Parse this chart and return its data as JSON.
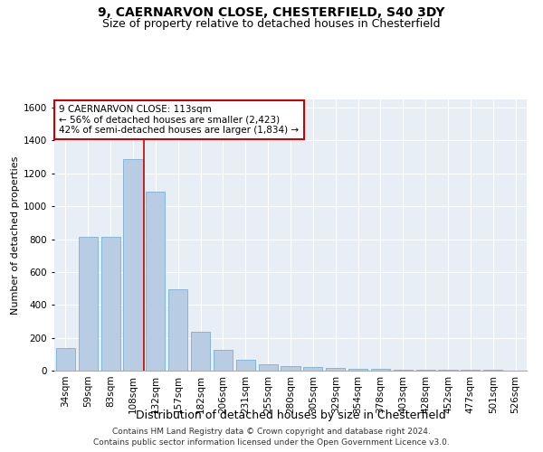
{
  "title1": "9, CAERNARVON CLOSE, CHESTERFIELD, S40 3DY",
  "title2": "Size of property relative to detached houses in Chesterfield",
  "xlabel": "Distribution of detached houses by size in Chesterfield",
  "ylabel": "Number of detached properties",
  "categories": [
    "34sqm",
    "59sqm",
    "83sqm",
    "108sqm",
    "132sqm",
    "157sqm",
    "182sqm",
    "206sqm",
    "231sqm",
    "255sqm",
    "280sqm",
    "305sqm",
    "329sqm",
    "354sqm",
    "378sqm",
    "403sqm",
    "428sqm",
    "452sqm",
    "477sqm",
    "501sqm",
    "526sqm"
  ],
  "values": [
    135,
    812,
    815,
    1285,
    1090,
    495,
    235,
    125,
    65,
    40,
    28,
    20,
    15,
    12,
    10,
    8,
    7,
    5,
    4,
    3,
    2
  ],
  "bar_color": "#b8cce4",
  "bar_edge_color": "#7bafd4",
  "vline_color": "#cc0000",
  "annotation_text": "9 CAERNARVON CLOSE: 113sqm\n← 56% of detached houses are smaller (2,423)\n42% of semi-detached houses are larger (1,834) →",
  "annotation_box_color": "#cc0000",
  "ylim": [
    0,
    1650
  ],
  "yticks": [
    0,
    200,
    400,
    600,
    800,
    1000,
    1200,
    1400,
    1600
  ],
  "background_color": "#e8eef5",
  "grid_color": "#ffffff",
  "footer": "Contains HM Land Registry data © Crown copyright and database right 2024.\nContains public sector information licensed under the Open Government Licence v3.0.",
  "title1_fontsize": 10,
  "title2_fontsize": 9,
  "xlabel_fontsize": 9,
  "ylabel_fontsize": 8,
  "tick_fontsize": 7.5,
  "annotation_fontsize": 7.5,
  "footer_fontsize": 6.5
}
